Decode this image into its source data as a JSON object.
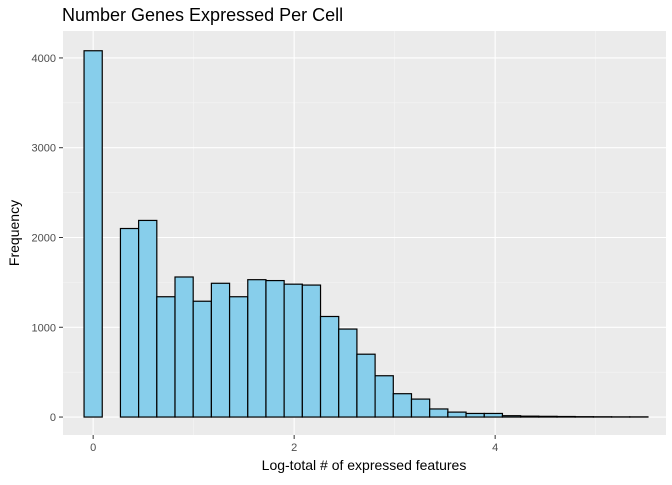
{
  "chart_data": {
    "type": "bar",
    "title": "Number Genes Expressed Per Cell",
    "xlabel": "Log-total # of expressed features",
    "ylabel": "Frequency",
    "xlim": [
      -0.3,
      5.7
    ],
    "ylim": [
      -200,
      4300
    ],
    "x_ticks": [
      0,
      2,
      4
    ],
    "x_tick_labels": [
      "0",
      "2",
      "4"
    ],
    "y_ticks": [
      0,
      1000,
      2000,
      3000,
      4000
    ],
    "y_tick_labels": [
      "0",
      "1000",
      "2000",
      "3000",
      "4000"
    ],
    "bin_width": 0.181,
    "bin_centers": [
      0.0,
      0.362,
      0.543,
      0.724,
      0.905,
      1.086,
      1.267,
      1.448,
      1.629,
      1.81,
      1.991,
      2.172,
      2.353,
      2.534,
      2.715,
      2.896,
      3.077,
      3.258,
      3.439,
      3.62,
      3.801,
      3.982,
      4.163,
      4.344,
      4.525,
      4.706,
      4.887,
      5.068,
      5.249,
      5.43
    ],
    "values": [
      4080,
      2100,
      2190,
      1340,
      1560,
      1290,
      1490,
      1340,
      1530,
      1520,
      1480,
      1470,
      1120,
      980,
      700,
      460,
      260,
      200,
      90,
      55,
      40,
      40,
      15,
      10,
      8,
      6,
      4,
      3,
      2,
      2
    ],
    "grid": true,
    "legend": "none",
    "colors": {
      "panel_bg": "#ebebeb",
      "grid_major": "#ffffff",
      "grid_minor": "#f5f5f5",
      "bar_fill": "#87ceeb",
      "bar_stroke": "#000000",
      "text": "#000000",
      "tick_text": "#4d4d4d"
    }
  }
}
